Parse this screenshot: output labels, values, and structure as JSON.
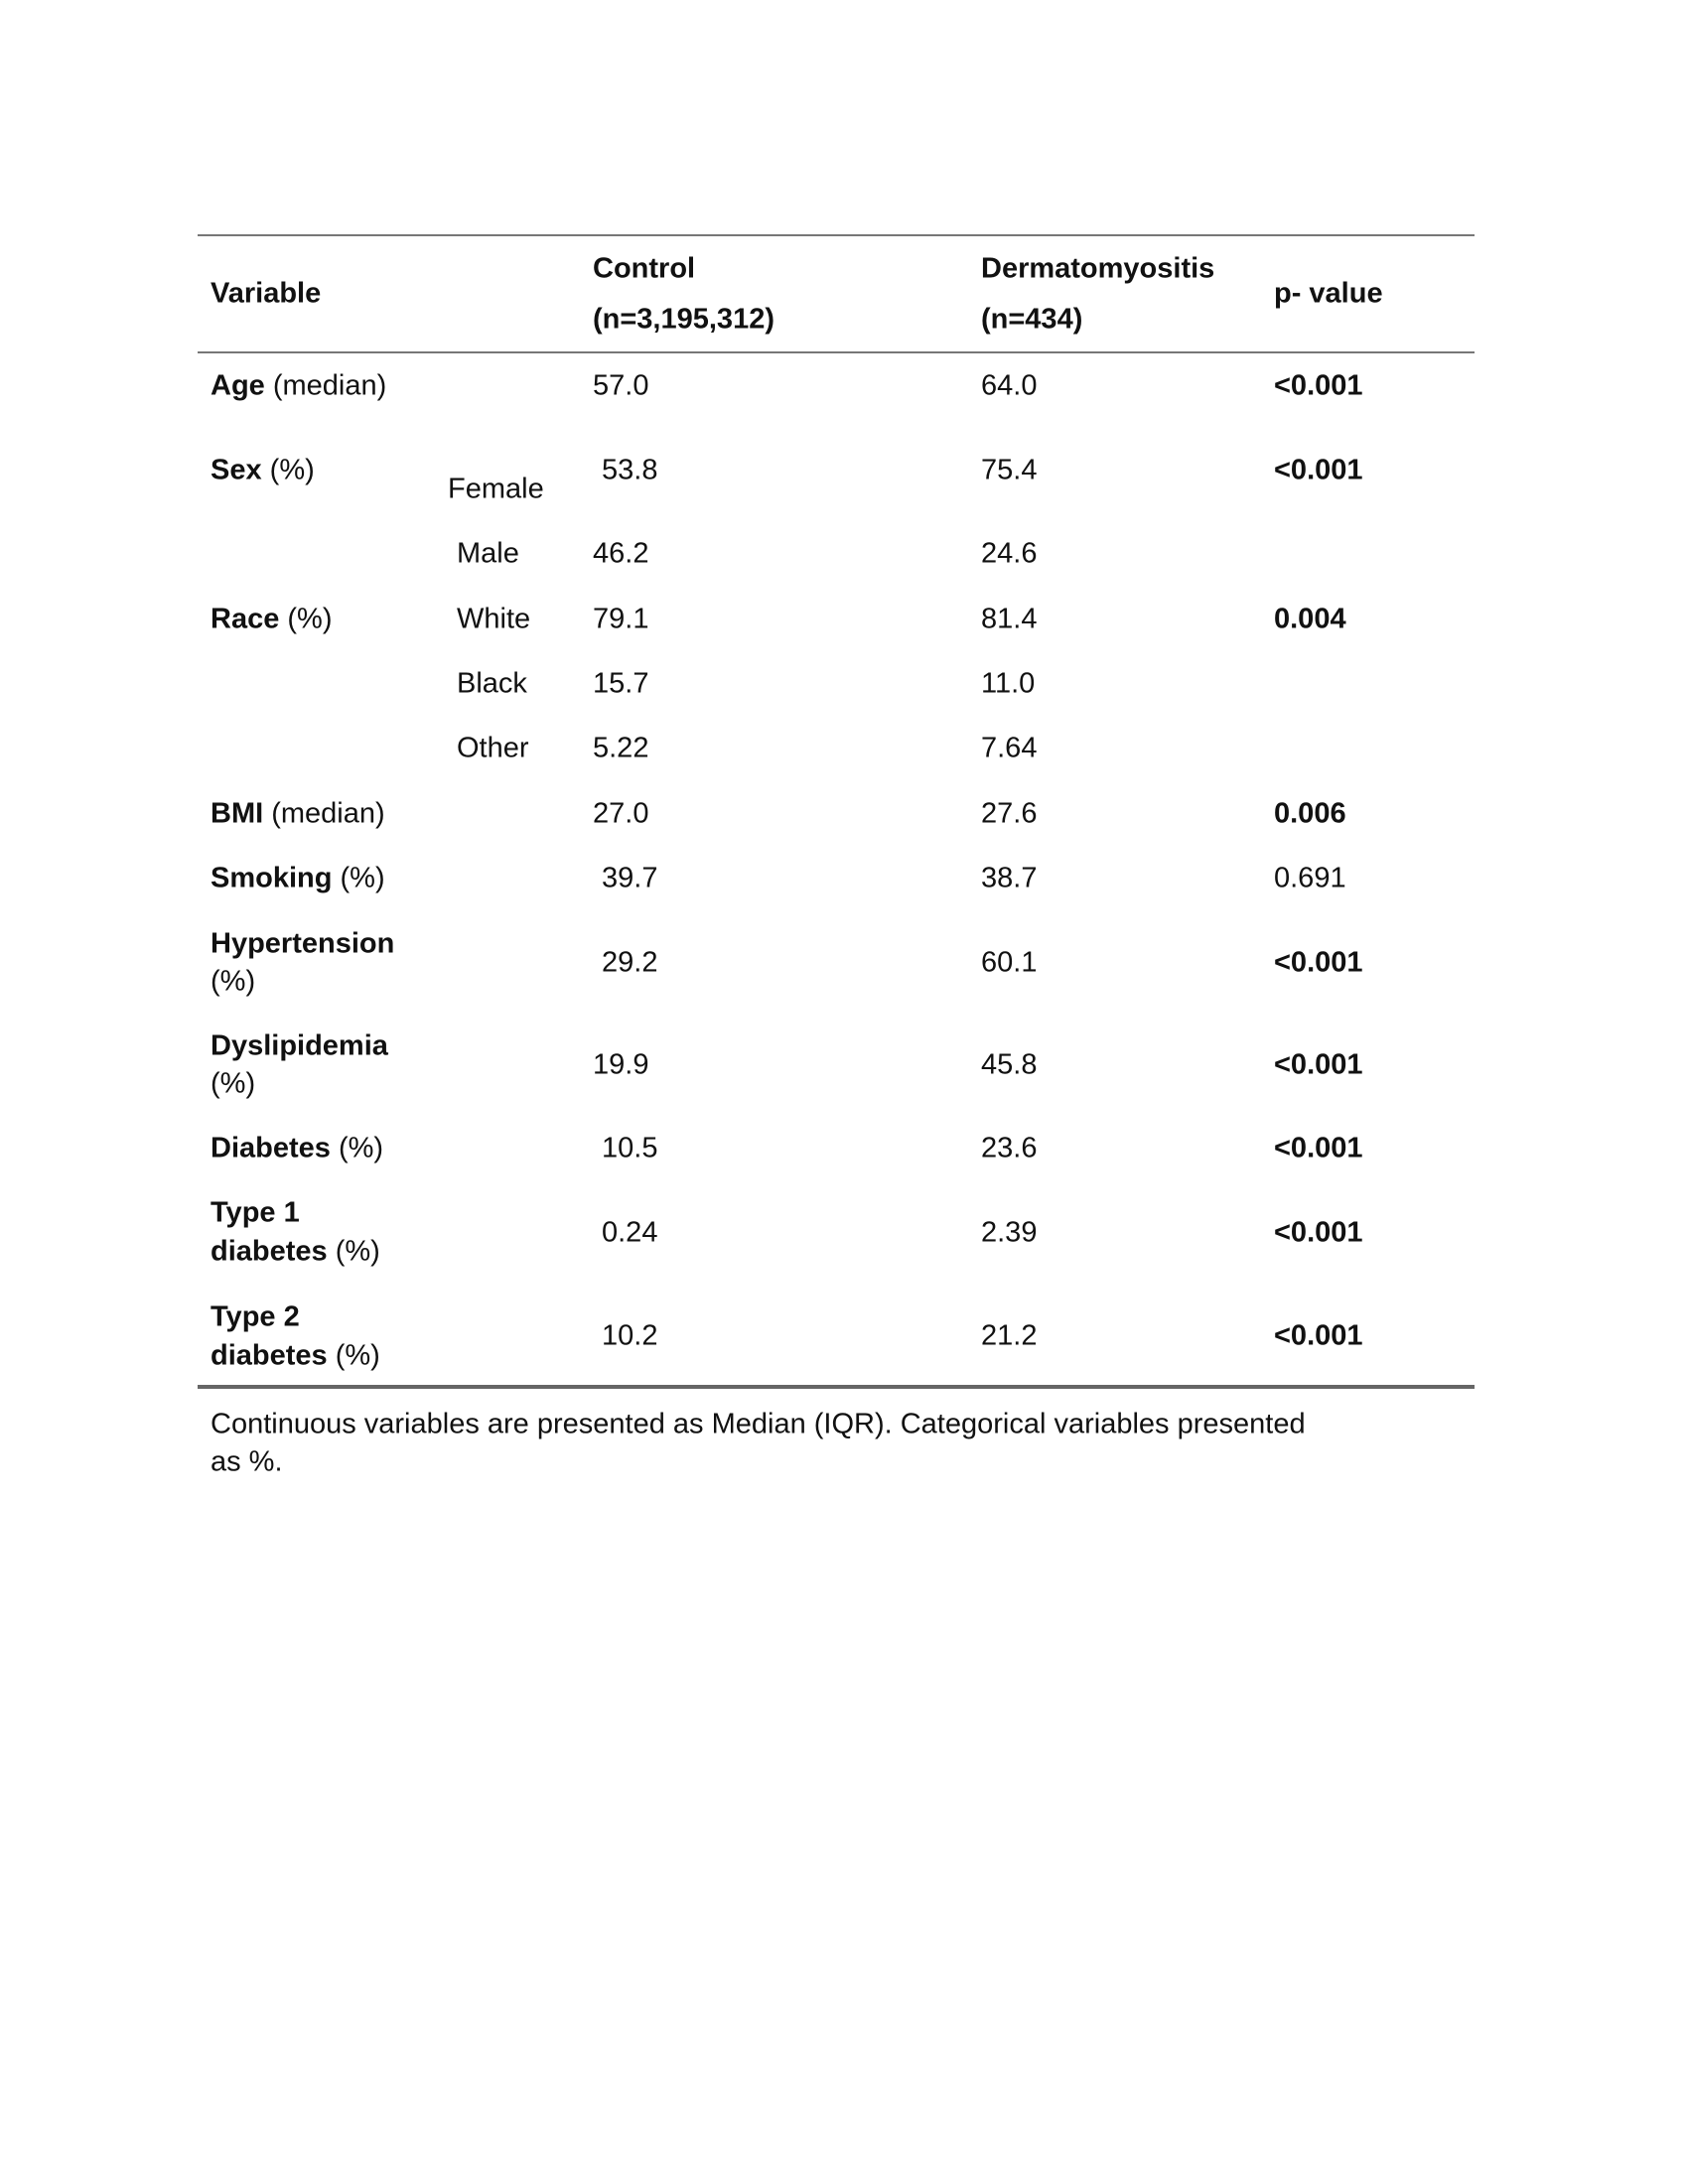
{
  "header": {
    "variable": "Variable",
    "control_line1": "Control",
    "control_line2": "(n=3,195,312)",
    "dm_line1": "Dermatomyositis",
    "dm_line2": "(n=434)",
    "p": "p- value"
  },
  "rows": {
    "age": {
      "name": "Age",
      "unit": " (median)",
      "control": "57.0",
      "dm": "64.0",
      "p": "<0.001"
    },
    "sex": {
      "name": "Sex",
      "unit": " (%)",
      "sub": "Female",
      "control": "53.8",
      "dm": "75.4",
      "p": "<0.001"
    },
    "male": {
      "sub": "Male",
      "control": "46.2",
      "dm": "24.6"
    },
    "race": {
      "name": "Race",
      "unit": " (%)",
      "sub": "White",
      "control": "79.1",
      "dm": "81.4",
      "p": "0.004"
    },
    "black": {
      "sub": "Black",
      "control": "15.7",
      "dm": "11.0"
    },
    "other": {
      "sub": "Other",
      "control": "5.22",
      "dm": "7.64"
    },
    "bmi": {
      "name": "BMI",
      "unit": " (median)",
      "control": "27.0",
      "dm": "27.6",
      "p": "0.006"
    },
    "smoking": {
      "name": "Smoking",
      "unit": " (%)",
      "control": "39.7",
      "dm": "38.7",
      "p": "0.691"
    },
    "hypertension": {
      "name": "Hypertension",
      "unit": "(%)",
      "control": "29.2",
      "dm": "60.1",
      "p": "<0.001"
    },
    "dyslipidemia": {
      "name": "Dyslipidemia",
      "unit": "(%)",
      "control": "19.9",
      "dm": "45.8",
      "p": "<0.001"
    },
    "diabetes": {
      "name": "Diabetes",
      "unit": " (%)",
      "control": "10.5",
      "dm": "23.6",
      "p": "<0.001"
    },
    "type1": {
      "name1": "Type 1",
      "name2": "diabetes",
      "unit": " (%)",
      "control": "0.24",
      "dm": "2.39",
      "p": "<0.001"
    },
    "type2": {
      "name1": "Type 2",
      "name2": "diabetes",
      "unit": " (%)",
      "control": "10.2",
      "dm": "21.2",
      "p": "<0.001"
    }
  },
  "footnote_line1": "Continuous variables are presented as Median (IQR). Categorical variables presented",
  "footnote_line2": "as %."
}
